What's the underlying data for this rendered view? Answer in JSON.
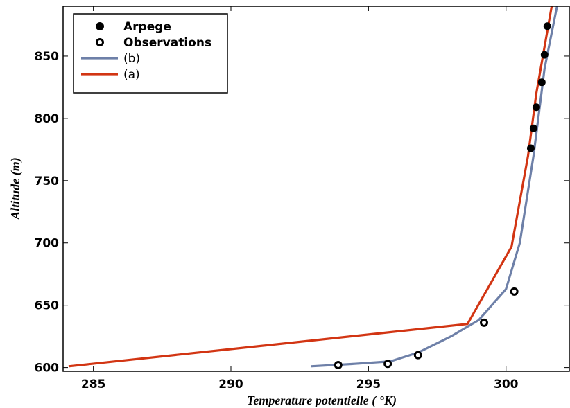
{
  "chart_data": {
    "type": "line",
    "xlabel": "Temperature potentielle (  °K)",
    "ylabel": "Altitude (m)",
    "xlim": [
      283.9,
      302.3
    ],
    "ylim": [
      597,
      890
    ],
    "xticks": [
      285,
      290,
      295,
      300
    ],
    "yticks": [
      600,
      650,
      700,
      750,
      800,
      850
    ],
    "grid": false,
    "legend_position": "top-left",
    "series": [
      {
        "name": "Arpege",
        "kind": "scatter-filled",
        "color": "#000000",
        "points": [
          {
            "x": 300.9,
            "y": 776
          },
          {
            "x": 301.0,
            "y": 792
          },
          {
            "x": 301.1,
            "y": 809
          },
          {
            "x": 301.3,
            "y": 829
          },
          {
            "x": 301.4,
            "y": 851
          },
          {
            "x": 301.5,
            "y": 874
          }
        ]
      },
      {
        "name": "Observations",
        "kind": "scatter-open",
        "color": "#000000",
        "points": [
          {
            "x": 293.9,
            "y": 602
          },
          {
            "x": 295.7,
            "y": 603
          },
          {
            "x": 296.8,
            "y": 610
          },
          {
            "x": 299.2,
            "y": 636
          },
          {
            "x": 300.3,
            "y": 661
          }
        ]
      },
      {
        "name": "(b)",
        "kind": "line",
        "color": "#6e80a8",
        "points": [
          {
            "x": 292.9,
            "y": 601
          },
          {
            "x": 294.5,
            "y": 603
          },
          {
            "x": 295.8,
            "y": 605
          },
          {
            "x": 296.8,
            "y": 612
          },
          {
            "x": 298.0,
            "y": 625
          },
          {
            "x": 299.0,
            "y": 638
          },
          {
            "x": 300.0,
            "y": 663
          },
          {
            "x": 300.5,
            "y": 700
          },
          {
            "x": 301.0,
            "y": 770
          },
          {
            "x": 301.4,
            "y": 840
          },
          {
            "x": 301.9,
            "y": 895
          }
        ]
      },
      {
        "name": "(a)",
        "kind": "line",
        "color": "#d23513",
        "points": [
          {
            "x": 284.1,
            "y": 601
          },
          {
            "x": 298.6,
            "y": 635
          },
          {
            "x": 300.2,
            "y": 697
          },
          {
            "x": 300.8,
            "y": 770
          },
          {
            "x": 301.1,
            "y": 820
          },
          {
            "x": 301.7,
            "y": 895
          }
        ]
      }
    ]
  }
}
